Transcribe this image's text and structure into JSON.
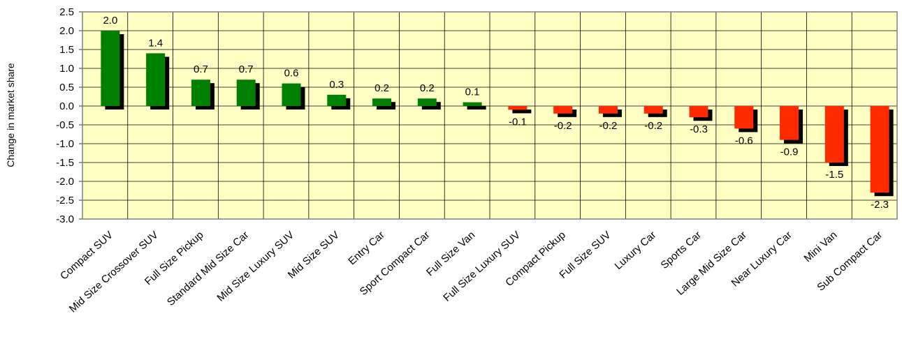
{
  "chart_data": {
    "type": "bar",
    "ylabel": "Change in market share",
    "categories": [
      "Compact SUV",
      "Mid Size Crossover SUV",
      "Full Size Pickup",
      "Standard Mid Size Car",
      "Mid Size Luxury SUV",
      "Mid Size SUV",
      "Entry Car",
      "Sport Compact Car",
      "Full Size Van",
      "Full Size Luxury SUV",
      "Compact Pickup",
      "Full Size SUV",
      "Luxury Car",
      "Sports Car",
      "Large Mid Size Car",
      "Near Luxury Car",
      "Mini Van",
      "Sub Compact Car"
    ],
    "values": [
      2.0,
      1.4,
      0.7,
      0.7,
      0.6,
      0.3,
      0.2,
      0.2,
      0.1,
      -0.1,
      -0.2,
      -0.2,
      -0.2,
      -0.3,
      -0.6,
      -0.9,
      -1.5,
      -2.3
    ],
    "value_labels": [
      "2.0",
      "1.4",
      "0.7",
      "0.7",
      "0.6",
      "0.3",
      "0.2",
      "0.2",
      "0.1",
      "-0.1",
      "-0.2",
      "-0.2",
      "-0.2",
      "-0.3",
      "-0.6",
      "-0.9",
      "-1.5",
      "-2.3"
    ],
    "positive_color": "#008000",
    "negative_color": "#ff2a00",
    "shadow_color": "#000000",
    "ylim": [
      -3.0,
      2.5
    ],
    "yticks": [
      2.5,
      {
        "value": 2,
        "label": "2.0"
      },
      1.5,
      {
        "value": 1,
        "label": "1.0"
      },
      0.5,
      {
        "value": 0,
        "label": "0.0"
      },
      -0.5,
      {
        "value": -1,
        "label": "-1.0"
      },
      -1.5,
      {
        "value": -2,
        "label": "-2.0"
      },
      -2.5,
      {
        "value": -3,
        "label": "-3.0"
      }
    ],
    "grid": true,
    "background": "#ffffc4"
  }
}
